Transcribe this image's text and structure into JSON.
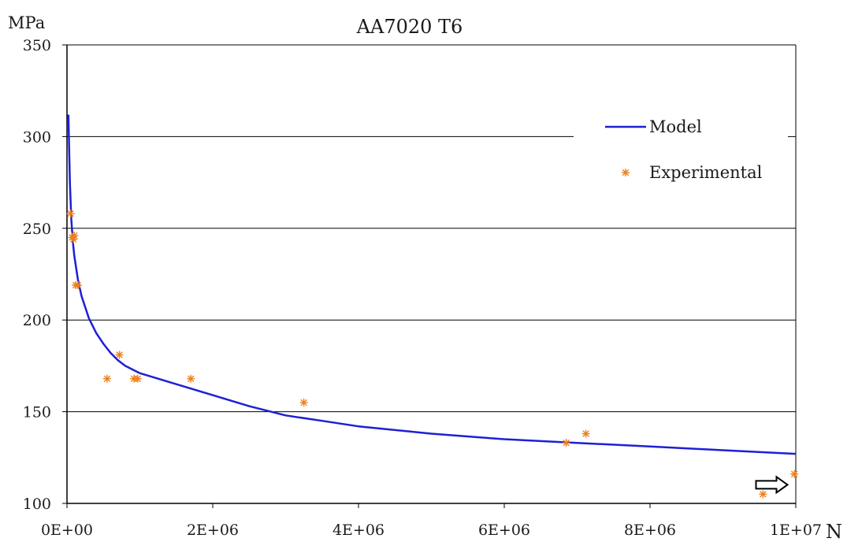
{
  "chart_data": {
    "type": "line",
    "title": "AA7020 T6",
    "ylabel": "MPa",
    "xlabel": "N",
    "xlim": [
      0,
      10000000
    ],
    "ylim": [
      100,
      350
    ],
    "x_ticks": [
      0,
      2000000,
      4000000,
      6000000,
      8000000,
      10000000
    ],
    "x_tick_labels": [
      "0E+00",
      "2E+06",
      "4E+06",
      "6E+06",
      "8E+06",
      "1E+07"
    ],
    "y_ticks": [
      100,
      150,
      200,
      250,
      300,
      350
    ],
    "y_tick_labels": [
      "100",
      "150",
      "200",
      "250",
      "300",
      "350"
    ],
    "grid": "horizontal",
    "legend_position": "top-right",
    "series": [
      {
        "name": "Model",
        "kind": "line",
        "color": "#1f1fd6",
        "x": [
          20000,
          40000,
          60000,
          80000,
          100000,
          150000,
          200000,
          300000,
          400000,
          500000,
          600000,
          700000,
          800000,
          1000000,
          1500000,
          2000000,
          2500000,
          3000000,
          3500000,
          4000000,
          5000000,
          6000000,
          7000000,
          8000000,
          9000000,
          10000000
        ],
        "y": [
          312,
          275,
          255,
          243,
          235,
          222,
          213,
          201,
          193,
          187,
          182,
          178,
          175,
          171,
          165,
          159,
          153,
          148,
          145,
          142,
          138,
          135,
          133,
          131,
          129,
          127
        ]
      },
      {
        "name": "Experimental",
        "kind": "scatter",
        "color": "#f07f1a",
        "x": [
          50000,
          70000,
          90000,
          100000,
          120000,
          150000,
          550000,
          720000,
          920000,
          970000,
          1700000,
          3250000,
          6850000,
          7120000,
          9550000,
          9980000
        ],
        "y": [
          258,
          245,
          244,
          246,
          219,
          219,
          168,
          181,
          168,
          168,
          168,
          155,
          133,
          138,
          105,
          116
        ]
      }
    ],
    "annotations": [
      {
        "type": "arrow",
        "x": 9800000,
        "y": 105,
        "direction": "right"
      }
    ]
  }
}
